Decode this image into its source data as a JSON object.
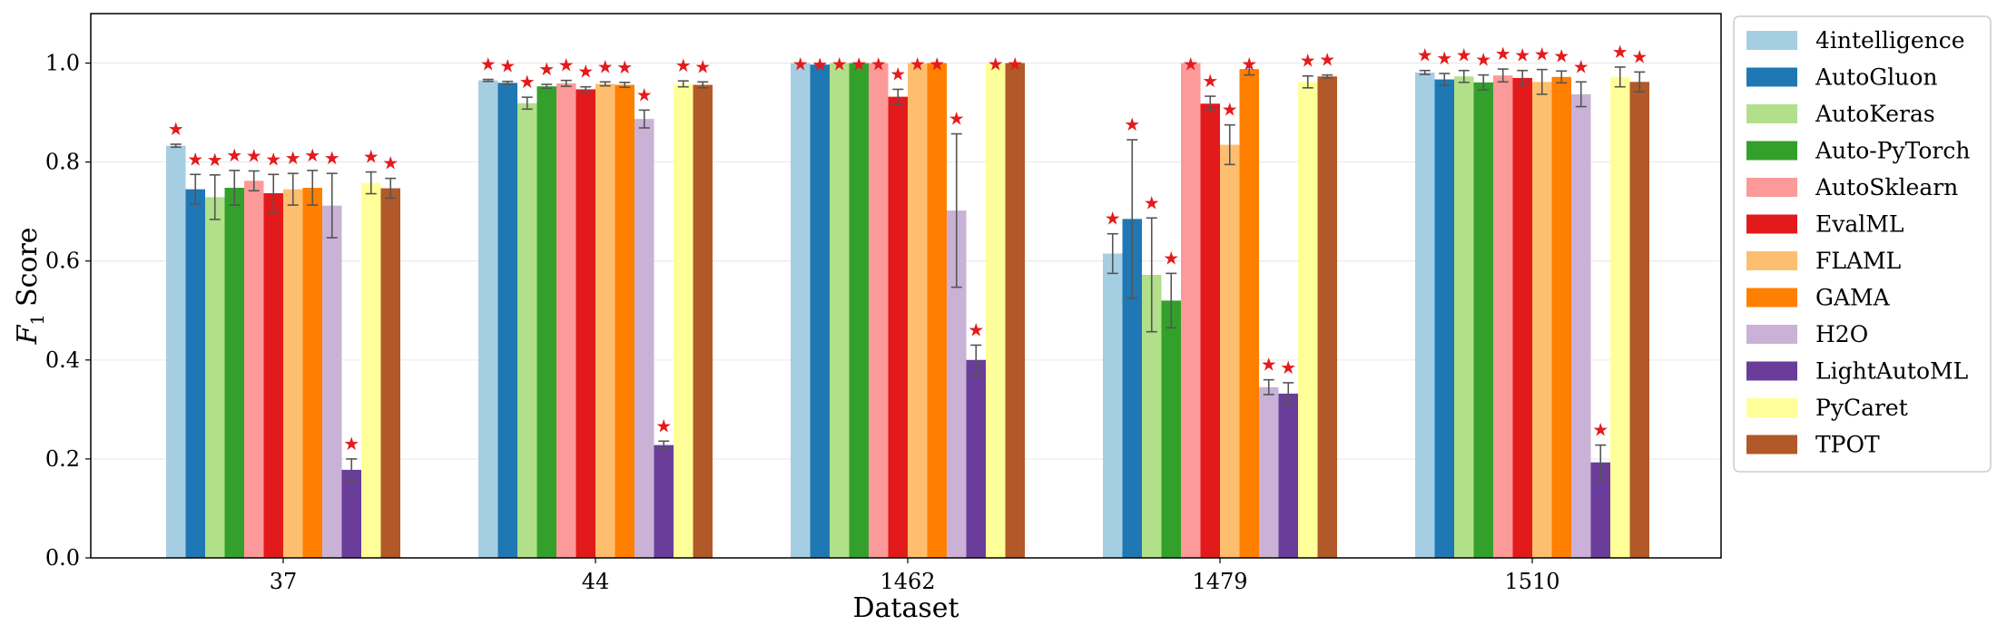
{
  "chart_data": {
    "type": "bar",
    "xlabel": "Dataset",
    "ylabel_italic": "F",
    "ylabel_sub": "1",
    "ylabel_rest": "Score",
    "ylim": [
      0,
      1.1
    ],
    "yticks": [
      "0.0",
      "0.2",
      "0.4",
      "0.6",
      "0.8",
      "1.0"
    ],
    "ytick_values": [
      0,
      0.2,
      0.4,
      0.6,
      0.8,
      1.0
    ],
    "grid": "horizontal",
    "legend_position": "right-outside",
    "categories": [
      "37",
      "44",
      "1462",
      "1479",
      "1510"
    ],
    "series": [
      {
        "name": "4intelligence",
        "color": "#a6cee3",
        "values": [
          0.833,
          0.965,
          1.0,
          0.615,
          0.981
        ],
        "errors": [
          0.003,
          0.002,
          0.0,
          0.04,
          0.004
        ],
        "star": [
          true,
          true,
          true,
          true,
          true
        ]
      },
      {
        "name": "AutoGluon",
        "color": "#1f78b4",
        "values": [
          0.745,
          0.96,
          0.997,
          0.685,
          0.967
        ],
        "errors": [
          0.03,
          0.003,
          0.002,
          0.16,
          0.012
        ],
        "star": [
          true,
          true,
          true,
          true,
          true
        ]
      },
      {
        "name": "AutoKeras",
        "color": "#b2df8a",
        "values": [
          0.729,
          0.919,
          1.0,
          0.572,
          0.973
        ],
        "errors": [
          0.045,
          0.012,
          0.0,
          0.115,
          0.012
        ],
        "star": [
          true,
          true,
          true,
          true,
          true
        ]
      },
      {
        "name": "Auto-PyTorch",
        "color": "#33a02c",
        "values": [
          0.748,
          0.953,
          1.0,
          0.52,
          0.961
        ],
        "errors": [
          0.035,
          0.004,
          0.0,
          0.055,
          0.015
        ],
        "star": [
          true,
          true,
          true,
          true,
          true
        ]
      },
      {
        "name": "AutoSklearn",
        "color": "#fb9a99",
        "values": [
          0.762,
          0.959,
          1.0,
          1.0,
          0.975
        ],
        "errors": [
          0.02,
          0.006,
          0.0,
          0.0,
          0.013
        ],
        "star": [
          true,
          true,
          true,
          true,
          true
        ]
      },
      {
        "name": "EvalML",
        "color": "#e31a1c",
        "values": [
          0.737,
          0.947,
          0.932,
          0.918,
          0.97
        ],
        "errors": [
          0.038,
          0.005,
          0.015,
          0.015,
          0.015
        ],
        "star": [
          true,
          true,
          true,
          true,
          true
        ]
      },
      {
        "name": "FLAML",
        "color": "#fdbf6f",
        "values": [
          0.745,
          0.958,
          1.0,
          0.835,
          0.962
        ],
        "errors": [
          0.032,
          0.004,
          0.0,
          0.04,
          0.025
        ],
        "star": [
          true,
          true,
          true,
          true,
          true
        ]
      },
      {
        "name": "GAMA",
        "color": "#ff7f00",
        "values": [
          0.748,
          0.956,
          1.0,
          0.988,
          0.972
        ],
        "errors": [
          0.035,
          0.005,
          0.0,
          0.012,
          0.012
        ],
        "star": [
          true,
          true,
          true,
          true,
          true
        ]
      },
      {
        "name": "H2O",
        "color": "#cab2d6",
        "values": [
          0.712,
          0.887,
          0.702,
          0.345,
          0.937
        ],
        "errors": [
          0.065,
          0.018,
          0.155,
          0.015,
          0.025
        ],
        "star": [
          true,
          true,
          true,
          true,
          true
        ]
      },
      {
        "name": "LightAutoML",
        "color": "#6a3d9a",
        "values": [
          0.178,
          0.228,
          0.4,
          0.332,
          0.193
        ],
        "errors": [
          0.022,
          0.008,
          0.03,
          0.022,
          0.035
        ],
        "star": [
          true,
          true,
          true,
          true,
          true
        ]
      },
      {
        "name": "PyCaret",
        "color": "#ffff99",
        "values": [
          0.758,
          0.958,
          1.0,
          0.962,
          0.972
        ],
        "errors": [
          0.022,
          0.006,
          0.0,
          0.012,
          0.02
        ],
        "star": [
          true,
          true,
          true,
          true,
          true
        ]
      },
      {
        "name": "TPOT",
        "color": "#b15928",
        "values": [
          0.747,
          0.956,
          1.0,
          0.973,
          0.962
        ],
        "errors": [
          0.02,
          0.006,
          0.0,
          0.003,
          0.02
        ],
        "star": [
          true,
          true,
          true,
          true,
          true
        ]
      }
    ]
  }
}
